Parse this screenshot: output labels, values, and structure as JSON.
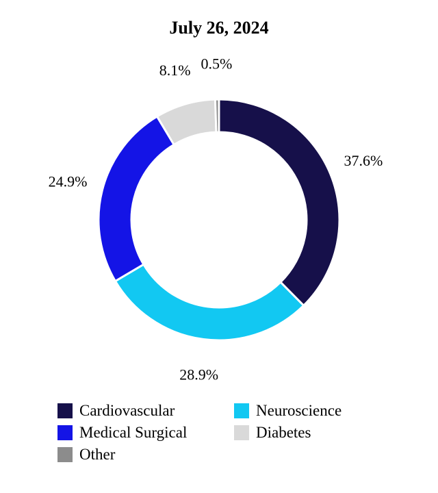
{
  "chart_data": {
    "type": "pie",
    "title": "July 26, 2024",
    "legend_position": "bottom",
    "slices": [
      {
        "label": "Cardiovascular",
        "value": 37.6,
        "display": "37.6%",
        "color": "#16104a"
      },
      {
        "label": "Neuroscience",
        "value": 28.9,
        "display": "28.9%",
        "color": "#12c8f2"
      },
      {
        "label": "Medical Surgical",
        "value": 24.9,
        "display": "24.9%",
        "color": "#1414e6"
      },
      {
        "label": "Diabetes",
        "value": 8.1,
        "display": "8.1%",
        "color": "#d9d9d9"
      },
      {
        "label": "Other",
        "value": 0.5,
        "display": "0.5%",
        "color": "#8c8c8c"
      }
    ],
    "legend": [
      {
        "label": "Cardiovascular",
        "color": "#16104a"
      },
      {
        "label": "Neuroscience",
        "color": "#12c8f2"
      },
      {
        "label": "Medical Surgical",
        "color": "#1414e6"
      },
      {
        "label": "Diabetes",
        "color": "#d9d9d9"
      },
      {
        "label": "Other",
        "color": "#8c8c8c"
      }
    ]
  }
}
